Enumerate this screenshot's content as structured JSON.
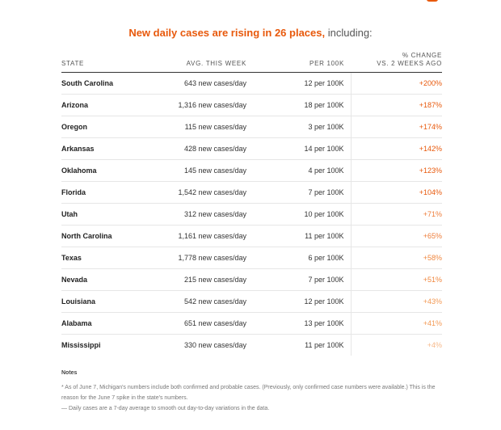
{
  "headline": {
    "highlight": "New daily cases are rising in 26 places,",
    "rest": " including:"
  },
  "table": {
    "headers": {
      "state": "STATE",
      "avg": "AVG. THIS WEEK",
      "per": "PER 100K",
      "change_line1": "% CHANGE",
      "change_line2": "VS. 2 WEEKS AGO"
    },
    "rows": [
      {
        "state": "South Carolina",
        "avg": "643 new cases/day",
        "per": "12 per 100K",
        "change": "+200%",
        "color": "#e8590c"
      },
      {
        "state": "Arizona",
        "avg": "1,316 new cases/day",
        "per": "18 per 100K",
        "change": "+187%",
        "color": "#e8590c"
      },
      {
        "state": "Oregon",
        "avg": "115 new cases/day",
        "per": "3 per 100K",
        "change": "+174%",
        "color": "#e8590c"
      },
      {
        "state": "Arkansas",
        "avg": "428 new cases/day",
        "per": "14 per 100K",
        "change": "+142%",
        "color": "#e8590c"
      },
      {
        "state": "Oklahoma",
        "avg": "145 new cases/day",
        "per": "4 per 100K",
        "change": "+123%",
        "color": "#e8590c"
      },
      {
        "state": "Florida",
        "avg": "1,542 new cases/day",
        "per": "7 per 100K",
        "change": "+104%",
        "color": "#e8590c"
      },
      {
        "state": "Utah",
        "avg": "312 new cases/day",
        "per": "10 per 100K",
        "change": "+71%",
        "color": "#ee7d3a"
      },
      {
        "state": "North Carolina",
        "avg": "1,161 new cases/day",
        "per": "11 per 100K",
        "change": "+65%",
        "color": "#ee7d3a"
      },
      {
        "state": "Texas",
        "avg": "1,778 new cases/day",
        "per": "6 per 100K",
        "change": "+58%",
        "color": "#f0873f"
      },
      {
        "state": "Nevada",
        "avg": "215 new cases/day",
        "per": "7 per 100K",
        "change": "+51%",
        "color": "#f0873f"
      },
      {
        "state": "Louisiana",
        "avg": "542 new cases/day",
        "per": "12 per 100K",
        "change": "+43%",
        "color": "#f39a55"
      },
      {
        "state": "Alabama",
        "avg": "651 new cases/day",
        "per": "13 per 100K",
        "change": "+41%",
        "color": "#f39a55"
      },
      {
        "state": "Mississippi",
        "avg": "330 new cases/day",
        "per": "11 per 100K",
        "change": "+4%",
        "color": "#f7b98a"
      }
    ]
  },
  "notes": {
    "title": "Notes",
    "line1": "* As of June 7, Michigan's numbers include both confirmed and probable cases. (Previously, only confirmed case numbers were available.) This is the reason for the June 7 spike in the state's numbers.",
    "line2": "— Daily cases are a 7-day average to smooth out day-to-day variations in the data."
  }
}
